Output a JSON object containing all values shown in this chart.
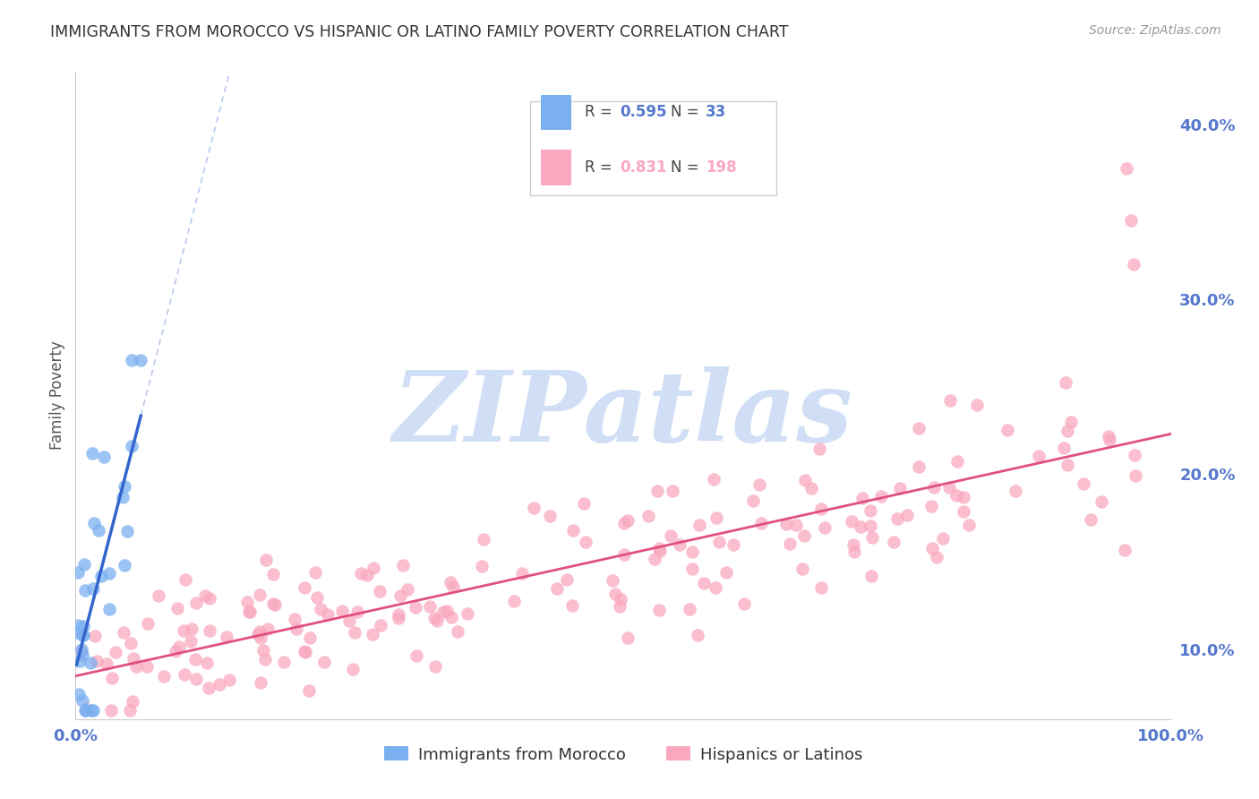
{
  "title": "IMMIGRANTS FROM MOROCCO VS HISPANIC OR LATINO FAMILY POVERTY CORRELATION CHART",
  "source": "Source: ZipAtlas.com",
  "ylabel": "Family Poverty",
  "yticks": [
    0.1,
    0.2,
    0.3,
    0.4
  ],
  "ytick_labels": [
    "10.0%",
    "20.0%",
    "30.0%",
    "40.0%"
  ],
  "xlim": [
    0.0,
    1.0
  ],
  "ylim": [
    0.06,
    0.43
  ],
  "watermark": "ZIPatlas",
  "legend_label1": "Immigrants from Morocco",
  "legend_label2": "Hispanics or Latinos",
  "blue_color": "#7aaff0",
  "pink_color": "#f9a8c0",
  "blue_line_color": "#3366cc",
  "pink_line_color": "#e05080",
  "axis_label_color": "#5577cc",
  "watermark_color": "#d0dff5",
  "grid_color": "#dddddd"
}
